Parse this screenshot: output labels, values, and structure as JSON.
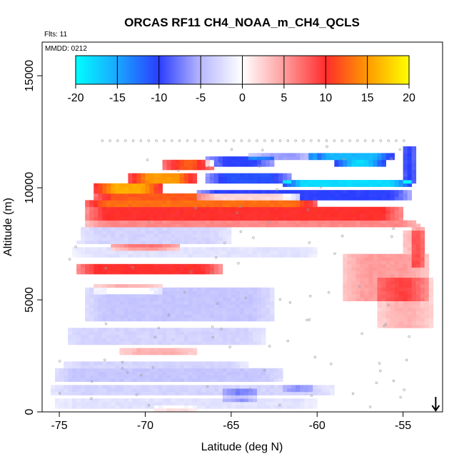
{
  "chart_data": {
    "type": "heatmap",
    "title": "ORCAS RF11 CH4_NOAA_m_CH4_QCLS",
    "flights_label": "Flts: 11",
    "date_label": "MMDD: 0212",
    "xlabel": "Latitude (deg N)",
    "ylabel": "Altitude (m)",
    "xlim": [
      -76.0,
      -52.7
    ],
    "ylim": [
      0,
      16500
    ],
    "x_ticks": [
      -75,
      -70,
      -65,
      -60,
      -55
    ],
    "x_tick_labels": [
      "-75",
      "-70",
      "-65",
      "-60",
      "-55"
    ],
    "y_ticks": [
      0,
      5000,
      10000,
      15000
    ],
    "y_tick_labels": [
      "0",
      "5000",
      "10000",
      "15000"
    ],
    "colorbar": {
      "min": -20,
      "max": 20,
      "ticks": [
        -20,
        -15,
        -10,
        -5,
        0,
        5,
        10,
        15,
        20
      ],
      "tick_labels": [
        "-20",
        "-15",
        "-10",
        "-5",
        "0",
        "5",
        "10",
        "15",
        "20"
      ],
      "stops": [
        {
          "value": -20,
          "color": "#00ffff"
        },
        {
          "value": -15,
          "color": "#1aa6ff"
        },
        {
          "value": -10,
          "color": "#2a3dff"
        },
        {
          "value": -5,
          "color": "#b8b8ff"
        },
        {
          "value": 0,
          "color": "#ffffff"
        },
        {
          "value": 5,
          "color": "#ff9e9e"
        },
        {
          "value": 10,
          "color": "#ff2c2c"
        },
        {
          "value": 15,
          "color": "#ff9a00"
        },
        {
          "value": 20,
          "color": "#ffff00"
        }
      ]
    },
    "arrow_latitude": -53.1,
    "features": [
      {
        "type": "band",
        "x1": -75.3,
        "x2": -62.0,
        "y1": 1300,
        "y2": 2000,
        "v": -4
      },
      {
        "type": "band",
        "x1": -74.8,
        "x2": -64.0,
        "y1": 1900,
        "y2": 2300,
        "v": -3
      },
      {
        "type": "band",
        "x1": -71.5,
        "x2": -67.0,
        "y1": 2600,
        "y2": 2900,
        "v": 4
      },
      {
        "type": "band",
        "x1": -75.0,
        "x2": -63.0,
        "y1": 3000,
        "y2": 3700,
        "v": -3
      },
      {
        "type": "band",
        "x1": -73.5,
        "x2": -62.5,
        "y1": 4000,
        "y2": 5500,
        "v": -4
      },
      {
        "type": "band",
        "x1": -73.0,
        "x2": -69.0,
        "y1": 5300,
        "y2": 5700,
        "v": 4
      },
      {
        "type": "band",
        "x1": -74.0,
        "x2": -65.5,
        "y1": 6200,
        "y2": 6600,
        "v": 10
      },
      {
        "type": "band",
        "x1": -74.2,
        "x2": -60.0,
        "y1": 6900,
        "y2": 7400,
        "v": -2
      },
      {
        "type": "band",
        "x1": -72.0,
        "x2": -68.0,
        "y1": 7150,
        "y2": 7450,
        "v": 7
      },
      {
        "type": "band",
        "x1": -74.0,
        "x2": -65.0,
        "y1": 7500,
        "y2": 8200,
        "v": -3
      },
      {
        "type": "band",
        "x1": -73.5,
        "x2": -54.0,
        "y1": 8300,
        "y2": 8600,
        "v": 6
      },
      {
        "type": "band",
        "x1": -73.5,
        "x2": -55.0,
        "y1": 8600,
        "y2": 9100,
        "v": 10
      },
      {
        "type": "band",
        "x1": -73.5,
        "x2": -60.0,
        "y1": 9100,
        "y2": 9500,
        "v": 13
      },
      {
        "type": "band",
        "x1": -73.0,
        "x2": -61.0,
        "y1": 9500,
        "y2": 9800,
        "v": 12
      },
      {
        "type": "band",
        "x1": -67.0,
        "x2": -54.5,
        "y1": 9500,
        "y2": 9950,
        "v": -10
      },
      {
        "type": "band",
        "x1": -62.0,
        "x2": -54.5,
        "y1": 10000,
        "y2": 10400,
        "v": -18
      },
      {
        "type": "band",
        "x1": -66.5,
        "x2": -61.5,
        "y1": 10200,
        "y2": 10600,
        "v": -11
      },
      {
        "type": "band",
        "x1": -73.0,
        "x2": -69.0,
        "y1": 9800,
        "y2": 10200,
        "v": 16
      },
      {
        "type": "band",
        "x1": -71.0,
        "x2": -67.0,
        "y1": 10200,
        "y2": 10700,
        "v": 15
      },
      {
        "type": "band",
        "x1": -69.0,
        "x2": -66.0,
        "y1": 10800,
        "y2": 11200,
        "v": 12
      },
      {
        "type": "band",
        "x1": -66.5,
        "x2": -62.5,
        "y1": 11000,
        "y2": 11400,
        "v": -10
      },
      {
        "type": "band",
        "x1": -64.0,
        "x2": -60.0,
        "y1": 11200,
        "y2": 11600,
        "v": -6
      },
      {
        "type": "band",
        "x1": -60.5,
        "x2": -55.5,
        "y1": 11300,
        "y2": 11600,
        "v": -16
      },
      {
        "type": "band",
        "x1": -59.0,
        "x2": -56.0,
        "y1": 11000,
        "y2": 11200,
        "v": -18
      },
      {
        "type": "band",
        "x1": -55.0,
        "x2": -54.3,
        "y1": 10200,
        "y2": 11900,
        "v": -15
      },
      {
        "type": "band",
        "x1": -58.5,
        "x2": -53.5,
        "y1": 5000,
        "y2": 7000,
        "v": 5
      },
      {
        "type": "band",
        "x1": -56.5,
        "x2": -53.3,
        "y1": 3800,
        "y2": 6000,
        "v": 4
      },
      {
        "type": "band",
        "x1": -55.0,
        "x2": -53.7,
        "y1": 7000,
        "y2": 8100,
        "v": 5
      },
      {
        "type": "band",
        "x1": -54.5,
        "x2": -53.8,
        "y1": 6500,
        "y2": 8200,
        "v": 7
      },
      {
        "type": "band",
        "x1": -75.5,
        "x2": -59.0,
        "y1": 700,
        "y2": 1200,
        "v": -3
      },
      {
        "type": "band",
        "x1": -75.2,
        "x2": -60.0,
        "y1": 200,
        "y2": 600,
        "v": -2
      },
      {
        "type": "band",
        "x1": -65.5,
        "x2": -63.5,
        "y1": 500,
        "y2": 1100,
        "v": -5
      },
      {
        "type": "band",
        "x1": -62.0,
        "x2": -60.2,
        "y1": 900,
        "y2": 1200,
        "v": -4
      },
      {
        "type": "band",
        "x1": -69.5,
        "x2": -67.0,
        "y1": 0,
        "y2": 300,
        "v": 2
      }
    ]
  }
}
